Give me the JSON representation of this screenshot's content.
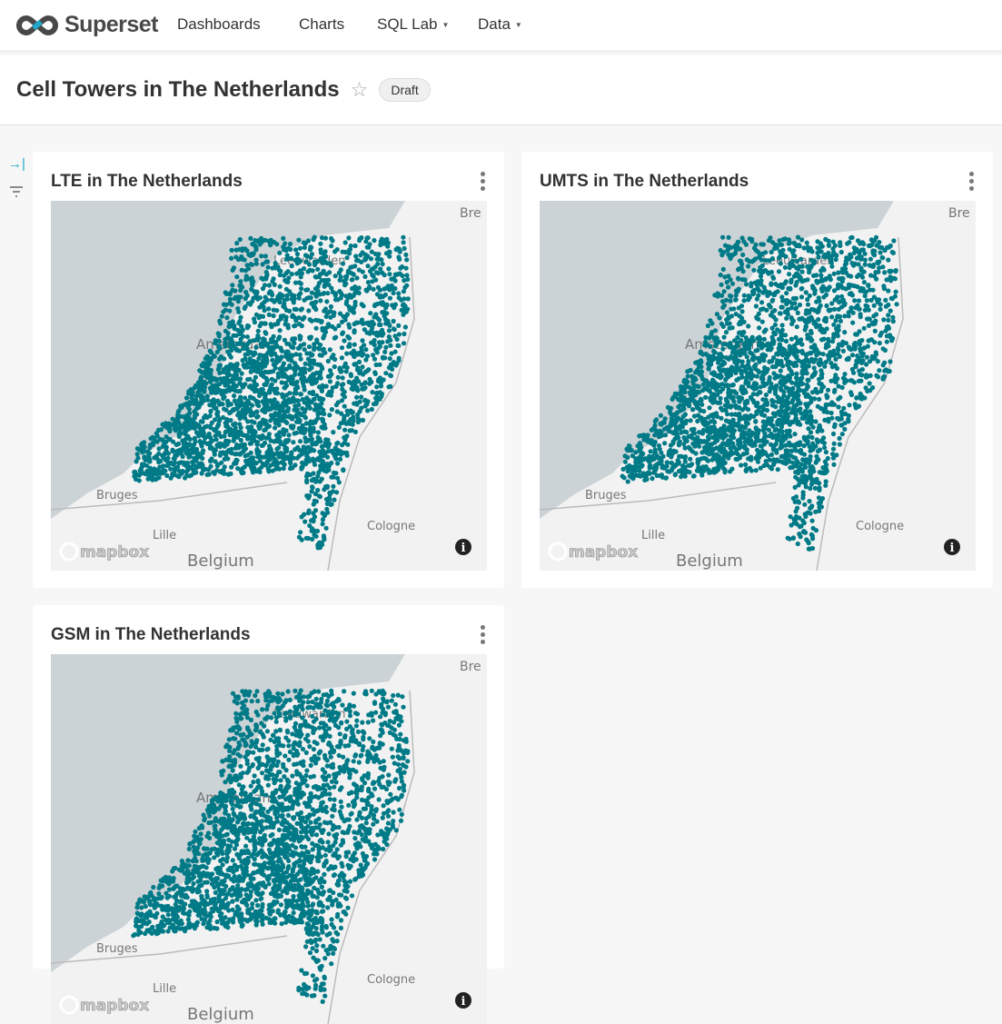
{
  "nav": {
    "brand": "Superset",
    "items": [
      {
        "label": "Dashboards"
      },
      {
        "label": "Charts"
      },
      {
        "label": "SQL Lab",
        "dropdown": true
      },
      {
        "label": "Data",
        "dropdown": true
      }
    ]
  },
  "header": {
    "title": "Cell Towers in The Netherlands",
    "status_badge": "Draft",
    "favorite_icon": "star-outline-icon"
  },
  "sidebar": {
    "icons": [
      "expand-filters-icon",
      "filter-icon"
    ]
  },
  "colors": {
    "points": "#007a87",
    "sea": "#ccd3d6",
    "land": "#f2f2f2",
    "accent": "#20a7c9"
  },
  "map_labels": {
    "bremen": "Bre",
    "leeuwarden": "Leeuwarden",
    "amsterdam": "Amsterdam",
    "bruges": "Bruges",
    "cologne": "Cologne",
    "belgium": "Belgium",
    "lille": "Lille",
    "attribution": "mapbox"
  },
  "charts": [
    {
      "title": "LTE in The Netherlands"
    },
    {
      "title": "UMTS in The Netherlands"
    },
    {
      "title": "GSM in The Netherlands"
    }
  ]
}
